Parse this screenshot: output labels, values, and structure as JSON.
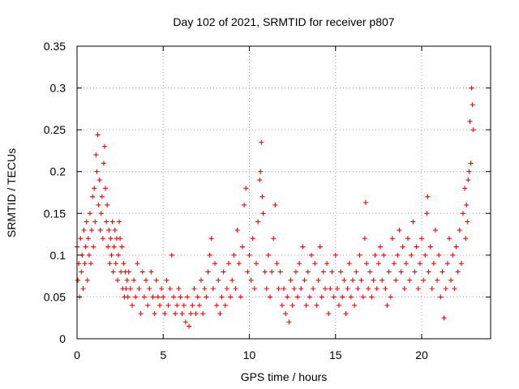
{
  "chart_data": {
    "type": "scatter",
    "title": "Day 102 of 2021, SRMTID for receiver p807",
    "xlabel": "GPS time / hours",
    "ylabel": "SRMTID / TECUs",
    "xlim": [
      0,
      24
    ],
    "ylim": [
      0,
      0.35
    ],
    "x_ticks": [
      0,
      5,
      10,
      15,
      20
    ],
    "x_tick_labels": [
      "0",
      "5",
      "10",
      "15",
      "20"
    ],
    "y_ticks": [
      0,
      0.05,
      0.1,
      0.15,
      0.2,
      0.25,
      0.3,
      0.35
    ],
    "y_tick_labels": [
      "0",
      "0.05",
      "0.1",
      "0.15",
      "0.2",
      "0.25",
      "0.3",
      "0.35"
    ],
    "grid": true,
    "marker": "+",
    "series": [
      {
        "name": "SRMTID",
        "color": "#ff0000",
        "points": [
          [
            0.0,
            0.11
          ],
          [
            0.05,
            0.07
          ],
          [
            0.1,
            0.09
          ],
          [
            0.15,
            0.05
          ],
          [
            0.2,
            0.12
          ],
          [
            0.25,
            0.08
          ],
          [
            0.3,
            0.1
          ],
          [
            0.35,
            0.06
          ],
          [
            0.4,
            0.13
          ],
          [
            0.45,
            0.09
          ],
          [
            0.5,
            0.11
          ],
          [
            0.55,
            0.14
          ],
          [
            0.6,
            0.07
          ],
          [
            0.65,
            0.12
          ],
          [
            0.7,
            0.1
          ],
          [
            0.75,
            0.15
          ],
          [
            0.8,
            0.09
          ],
          [
            0.85,
            0.13
          ],
          [
            0.9,
            0.17
          ],
          [
            0.95,
            0.11
          ],
          [
            1.0,
            0.18
          ],
          [
            1.05,
            0.14
          ],
          [
            1.1,
            0.22
          ],
          [
            1.15,
            0.2
          ],
          [
            1.2,
            0.244
          ],
          [
            1.25,
            0.16
          ],
          [
            1.3,
            0.19
          ],
          [
            1.35,
            0.13
          ],
          [
            1.4,
            0.15
          ],
          [
            1.45,
            0.17
          ],
          [
            1.5,
            0.12
          ],
          [
            1.55,
            0.21
          ],
          [
            1.6,
            0.23
          ],
          [
            1.65,
            0.18
          ],
          [
            1.7,
            0.14
          ],
          [
            1.75,
            0.16
          ],
          [
            1.8,
            0.11
          ],
          [
            1.85,
            0.13
          ],
          [
            1.9,
            0.09
          ],
          [
            1.95,
            0.12
          ],
          [
            2.0,
            0.1
          ],
          [
            2.05,
            0.14
          ],
          [
            2.1,
            0.08
          ],
          [
            2.15,
            0.11
          ],
          [
            2.2,
            0.13
          ],
          [
            2.25,
            0.09
          ],
          [
            2.3,
            0.12
          ],
          [
            2.35,
            0.07
          ],
          [
            2.4,
            0.1
          ],
          [
            2.45,
            0.14
          ],
          [
            2.5,
            0.12
          ],
          [
            2.55,
            0.08
          ],
          [
            2.6,
            0.11
          ],
          [
            2.65,
            0.06
          ],
          [
            2.7,
            0.09
          ],
          [
            2.75,
            0.05
          ],
          [
            2.8,
            0.08
          ],
          [
            2.85,
            0.06
          ],
          [
            2.9,
            0.07
          ],
          [
            2.95,
            0.05
          ],
          [
            3.0,
            0.08
          ],
          [
            3.1,
            0.06
          ],
          [
            3.2,
            0.04
          ],
          [
            3.3,
            0.07
          ],
          [
            3.4,
            0.05
          ],
          [
            3.5,
            0.09
          ],
          [
            3.6,
            0.06
          ],
          [
            3.7,
            0.03
          ],
          [
            3.8,
            0.08
          ],
          [
            3.9,
            0.05
          ],
          [
            4.0,
            0.07
          ],
          [
            4.1,
            0.04
          ],
          [
            4.2,
            0.06
          ],
          [
            4.3,
            0.08
          ],
          [
            4.4,
            0.05
          ],
          [
            4.5,
            0.03
          ],
          [
            4.6,
            0.07
          ],
          [
            4.7,
            0.05
          ],
          [
            4.8,
            0.04
          ],
          [
            4.9,
            0.06
          ],
          [
            5.0,
            0.05
          ],
          [
            5.1,
            0.03
          ],
          [
            5.2,
            0.07
          ],
          [
            5.3,
            0.04
          ],
          [
            5.4,
            0.06
          ],
          [
            5.5,
            0.1
          ],
          [
            5.6,
            0.05
          ],
          [
            5.7,
            0.03
          ],
          [
            5.8,
            0.04
          ],
          [
            5.9,
            0.06
          ],
          [
            6.0,
            0.05
          ],
          [
            6.1,
            0.03
          ],
          [
            6.2,
            0.04
          ],
          [
            6.3,
            0.02
          ],
          [
            6.4,
            0.05
          ],
          [
            6.5,
            0.015
          ],
          [
            6.6,
            0.03
          ],
          [
            6.7,
            0.04
          ],
          [
            6.8,
            0.06
          ],
          [
            6.9,
            0.03
          ],
          [
            7.0,
            0.05
          ],
          [
            7.1,
            0.04
          ],
          [
            7.2,
            0.07
          ],
          [
            7.3,
            0.03
          ],
          [
            7.4,
            0.06
          ],
          [
            7.5,
            0.05
          ],
          [
            7.6,
            0.08
          ],
          [
            7.7,
            0.1
          ],
          [
            7.8,
            0.12
          ],
          [
            7.9,
            0.06
          ],
          [
            8.0,
            0.09
          ],
          [
            8.1,
            0.04
          ],
          [
            8.2,
            0.07
          ],
          [
            8.3,
            0.03
          ],
          [
            8.4,
            0.05
          ],
          [
            8.5,
            0.08
          ],
          [
            8.6,
            0.04
          ],
          [
            8.7,
            0.06
          ],
          [
            8.8,
            0.09
          ],
          [
            8.9,
            0.05
          ],
          [
            9.0,
            0.07
          ],
          [
            9.1,
            0.1
          ],
          [
            9.2,
            0.06
          ],
          [
            9.3,
            0.13
          ],
          [
            9.4,
            0.09
          ],
          [
            9.5,
            0.05
          ],
          [
            9.6,
            0.11
          ],
          [
            9.7,
            0.16
          ],
          [
            9.8,
            0.18
          ],
          [
            9.9,
            0.08
          ],
          [
            10.0,
            0.1
          ],
          [
            10.1,
            0.07
          ],
          [
            10.2,
            0.12
          ],
          [
            10.3,
            0.06
          ],
          [
            10.4,
            0.09
          ],
          [
            10.5,
            0.14
          ],
          [
            10.6,
            0.19
          ],
          [
            10.65,
            0.2
          ],
          [
            10.7,
            0.235
          ],
          [
            10.75,
            0.17
          ],
          [
            10.8,
            0.15
          ],
          [
            10.9,
            0.08
          ],
          [
            11.0,
            0.06
          ],
          [
            11.1,
            0.1
          ],
          [
            11.2,
            0.05
          ],
          [
            11.3,
            0.08
          ],
          [
            11.4,
            0.12
          ],
          [
            11.5,
            0.16
          ],
          [
            11.6,
            0.09
          ],
          [
            11.7,
            0.06
          ],
          [
            11.8,
            0.08
          ],
          [
            11.9,
            0.04
          ],
          [
            12.0,
            0.06
          ],
          [
            12.1,
            0.03
          ],
          [
            12.2,
            0.05
          ],
          [
            12.3,
            0.02
          ],
          [
            12.4,
            0.07
          ],
          [
            12.5,
            0.04
          ],
          [
            12.6,
            0.06
          ],
          [
            12.7,
            0.08
          ],
          [
            12.8,
            0.05
          ],
          [
            12.9,
            0.09
          ],
          [
            13.0,
            0.06
          ],
          [
            13.1,
            0.11
          ],
          [
            13.2,
            0.07
          ],
          [
            13.3,
            0.04
          ],
          [
            13.4,
            0.08
          ],
          [
            13.5,
            0.05
          ],
          [
            13.6,
            0.1
          ],
          [
            13.7,
            0.06
          ],
          [
            13.8,
            0.09
          ],
          [
            13.9,
            0.04
          ],
          [
            14.0,
            0.07
          ],
          [
            14.1,
            0.11
          ],
          [
            14.2,
            0.05
          ],
          [
            14.3,
            0.08
          ],
          [
            14.4,
            0.06
          ],
          [
            14.5,
            0.09
          ],
          [
            14.6,
            0.03
          ],
          [
            14.7,
            0.06
          ],
          [
            14.8,
            0.08
          ],
          [
            14.9,
            0.05
          ],
          [
            15.0,
            0.1
          ],
          [
            15.1,
            0.06
          ],
          [
            15.2,
            0.04
          ],
          [
            15.3,
            0.08
          ],
          [
            15.4,
            0.05
          ],
          [
            15.5,
            0.07
          ],
          [
            15.6,
            0.03
          ],
          [
            15.7,
            0.06
          ],
          [
            15.8,
            0.09
          ],
          [
            15.9,
            0.05
          ],
          [
            16.0,
            0.07
          ],
          [
            16.1,
            0.04
          ],
          [
            16.2,
            0.08
          ],
          [
            16.3,
            0.06
          ],
          [
            16.4,
            0.1
          ],
          [
            16.5,
            0.07
          ],
          [
            16.6,
            0.05
          ],
          [
            16.7,
            0.12
          ],
          [
            16.75,
            0.163
          ],
          [
            16.8,
            0.09
          ],
          [
            16.9,
            0.06
          ],
          [
            17.0,
            0.08
          ],
          [
            17.1,
            0.05
          ],
          [
            17.2,
            0.07
          ],
          [
            17.3,
            0.1
          ],
          [
            17.4,
            0.06
          ],
          [
            17.5,
            0.09
          ],
          [
            17.6,
            0.11
          ],
          [
            17.7,
            0.07
          ],
          [
            17.8,
            0.1
          ],
          [
            17.9,
            0.06
          ],
          [
            18.0,
            0.04
          ],
          [
            18.1,
            0.08
          ],
          [
            18.2,
            0.05
          ],
          [
            18.3,
            0.12
          ],
          [
            18.4,
            0.09
          ],
          [
            18.5,
            0.07
          ],
          [
            18.6,
            0.1
          ],
          [
            18.7,
            0.13
          ],
          [
            18.8,
            0.08
          ],
          [
            18.9,
            0.11
          ],
          [
            19.0,
            0.06
          ],
          [
            19.1,
            0.09
          ],
          [
            19.2,
            0.12
          ],
          [
            19.3,
            0.07
          ],
          [
            19.4,
            0.1
          ],
          [
            19.5,
            0.14
          ],
          [
            19.6,
            0.08
          ],
          [
            19.7,
            0.11
          ],
          [
            19.8,
            0.06
          ],
          [
            19.9,
            0.09
          ],
          [
            20.0,
            0.12
          ],
          [
            20.1,
            0.07
          ],
          [
            20.2,
            0.1
          ],
          [
            20.3,
            0.15
          ],
          [
            20.35,
            0.17
          ],
          [
            20.4,
            0.08
          ],
          [
            20.5,
            0.11
          ],
          [
            20.6,
            0.06
          ],
          [
            20.7,
            0.09
          ],
          [
            20.8,
            0.13
          ],
          [
            20.9,
            0.07
          ],
          [
            21.0,
            0.1
          ],
          [
            21.1,
            0.05
          ],
          [
            21.2,
            0.08
          ],
          [
            21.3,
            0.025
          ],
          [
            21.4,
            0.06
          ],
          [
            21.5,
            0.09
          ],
          [
            21.6,
            0.12
          ],
          [
            21.7,
            0.07
          ],
          [
            21.8,
            0.1
          ],
          [
            21.9,
            0.06
          ],
          [
            22.0,
            0.11
          ],
          [
            22.1,
            0.08
          ],
          [
            22.2,
            0.13
          ],
          [
            22.3,
            0.09
          ],
          [
            22.4,
            0.15
          ],
          [
            22.5,
            0.18
          ],
          [
            22.55,
            0.12
          ],
          [
            22.6,
            0.16
          ],
          [
            22.65,
            0.14
          ],
          [
            22.7,
            0.19
          ],
          [
            22.75,
            0.2
          ],
          [
            22.8,
            0.26
          ],
          [
            22.85,
            0.21
          ],
          [
            22.9,
            0.3
          ],
          [
            22.95,
            0.28
          ],
          [
            23.0,
            0.25
          ]
        ]
      }
    ]
  }
}
